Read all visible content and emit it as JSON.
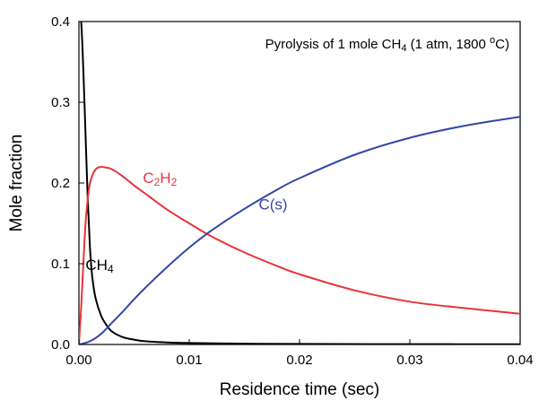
{
  "chart_data": {
    "type": "line",
    "title": "",
    "annotation": {
      "prefix": "Pyrolysis of 1 mole CH",
      "sub": "4",
      "mid": " (1 atm, 1800 ",
      "sup": "o",
      "suffix": "C)"
    },
    "xlabel": "Residence time (sec)",
    "ylabel": "Mole fraction",
    "xlim": [
      0,
      0.04
    ],
    "ylim": [
      0,
      0.4
    ],
    "xticks": [
      0.0,
      0.01,
      0.02,
      0.03,
      0.04
    ],
    "xtick_labels": [
      "0.00",
      "0.01",
      "0.02",
      "0.03",
      "0.04"
    ],
    "yticks": [
      0.0,
      0.1,
      0.2,
      0.3,
      0.4
    ],
    "ytick_labels": [
      "0.0",
      "0.1",
      "0.2",
      "0.3",
      "0.4"
    ],
    "grid": false,
    "legend": "none",
    "series": [
      {
        "key": "CH4",
        "label_main": "CH",
        "label_parts": [
          [
            "CH",
            ""
          ],
          [
            "4",
            "sub"
          ]
        ],
        "color": "#000000",
        "label_at": [
          0.0006,
          0.092
        ],
        "x": [
          0,
          0.0002,
          0.0004,
          0.0006,
          0.0008,
          0.001,
          0.0012,
          0.0015,
          0.002,
          0.0025,
          0.003,
          0.004,
          0.005,
          0.006,
          0.008,
          0.01,
          0.015,
          0.02,
          0.03,
          0.04
        ],
        "y": [
          0.4,
          0.4,
          0.34,
          0.26,
          0.18,
          0.12,
          0.085,
          0.058,
          0.036,
          0.024,
          0.016,
          0.009,
          0.006,
          0.004,
          0.0025,
          0.0018,
          0.001,
          0.0007,
          0.0004,
          0.0003
        ]
      },
      {
        "key": "C2H2",
        "label_main": "C2H2",
        "label_parts": [
          [
            "C",
            ""
          ],
          [
            "2",
            "sub"
          ],
          [
            "H",
            ""
          ],
          [
            "2",
            "sub"
          ]
        ],
        "color": "#e8343a",
        "label_at": [
          0.0058,
          0.2
        ],
        "x": [
          0,
          0.0002,
          0.0004,
          0.0006,
          0.0008,
          0.001,
          0.0013,
          0.0016,
          0.002,
          0.0025,
          0.003,
          0.004,
          0.005,
          0.006,
          0.008,
          0.01,
          0.012,
          0.015,
          0.018,
          0.02,
          0.025,
          0.03,
          0.035,
          0.04
        ],
        "y": [
          0,
          0.045,
          0.1,
          0.15,
          0.18,
          0.2,
          0.212,
          0.218,
          0.22,
          0.219,
          0.217,
          0.208,
          0.197,
          0.187,
          0.167,
          0.15,
          0.134,
          0.114,
          0.097,
          0.087,
          0.067,
          0.053,
          0.045,
          0.038
        ]
      },
      {
        "key": "Cs",
        "label_main": "C(s)",
        "label_parts": [
          [
            "C(s)",
            ""
          ]
        ],
        "color": "#3347a8",
        "label_at": [
          0.0163,
          0.167
        ],
        "x": [
          0,
          0.001,
          0.002,
          0.003,
          0.004,
          0.005,
          0.006,
          0.008,
          0.01,
          0.012,
          0.015,
          0.018,
          0.02,
          0.025,
          0.03,
          0.035,
          0.04
        ],
        "y": [
          0,
          0.004,
          0.013,
          0.027,
          0.041,
          0.056,
          0.07,
          0.096,
          0.12,
          0.141,
          0.168,
          0.192,
          0.206,
          0.235,
          0.256,
          0.271,
          0.282
        ]
      }
    ]
  }
}
